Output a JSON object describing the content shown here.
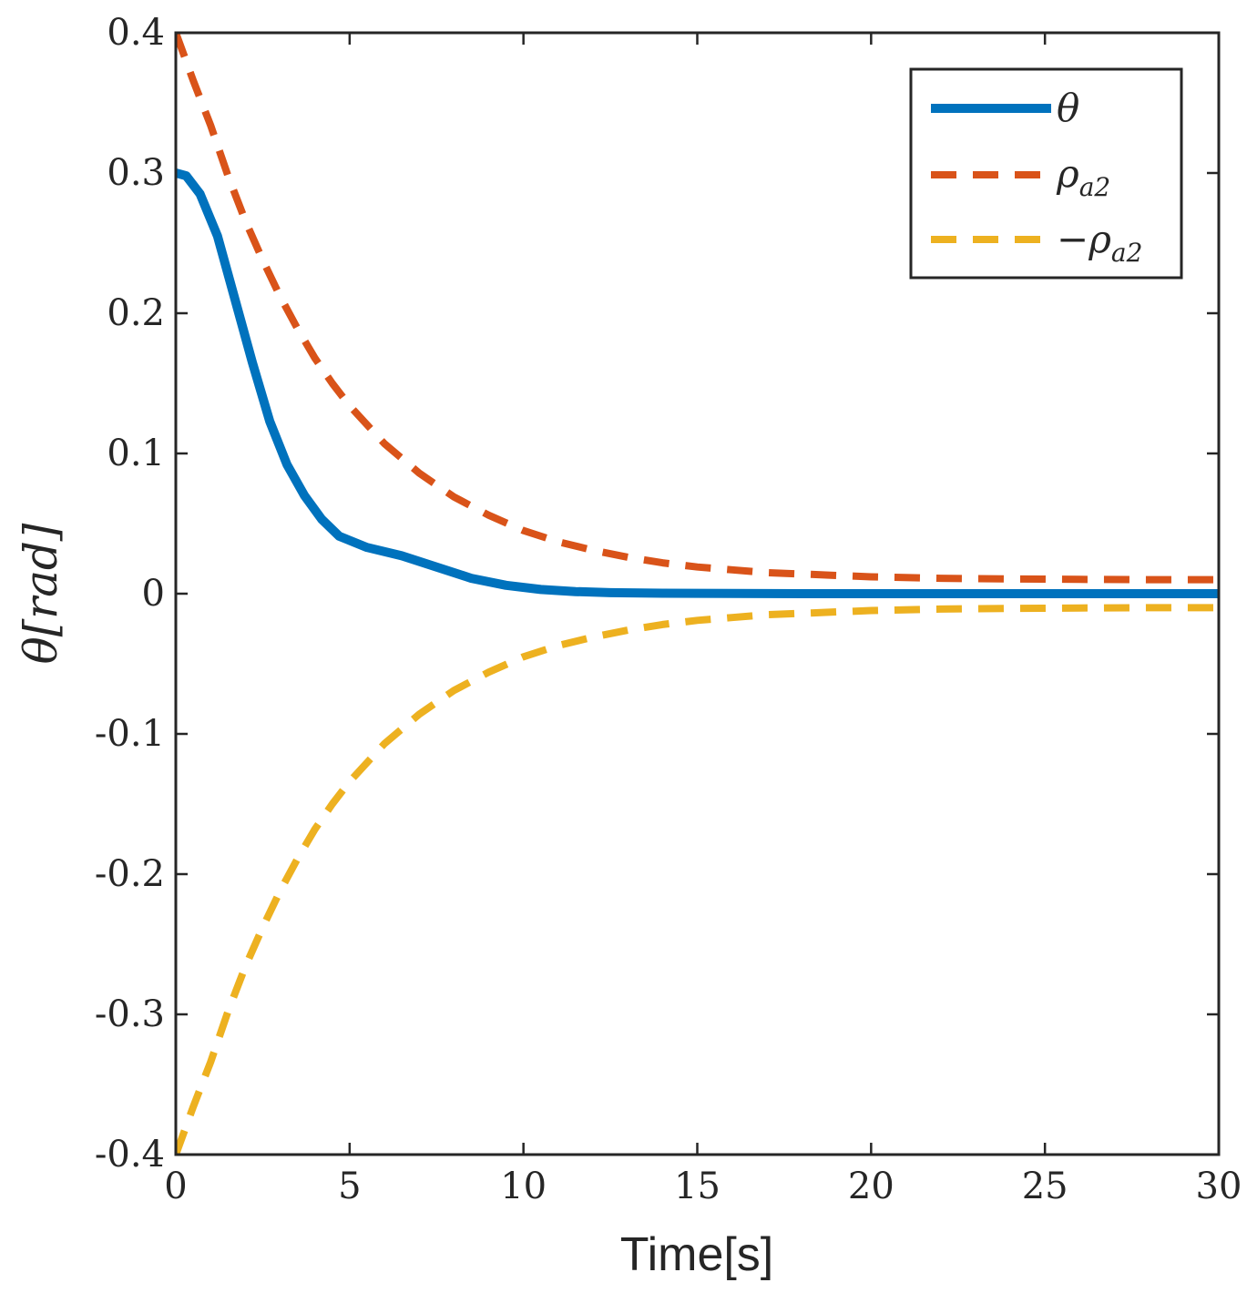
{
  "chart_data": {
    "type": "line",
    "title": "",
    "xlabel": "Time[s]",
    "ylabel": "θ[rad]",
    "xlim": [
      0,
      30
    ],
    "ylim": [
      -0.4,
      0.4
    ],
    "xticks": [
      0,
      5,
      10,
      15,
      20,
      25,
      30
    ],
    "xtick_labels": [
      "0",
      "5",
      "10",
      "15",
      "20",
      "25",
      "30"
    ],
    "yticks": [
      -0.4,
      -0.3,
      -0.2,
      -0.1,
      0,
      0.1,
      0.2,
      0.3,
      0.4
    ],
    "ytick_labels": [
      "-0.4",
      "-0.3",
      "-0.2",
      "-0.1",
      "0",
      "0.1",
      "0.2",
      "0.3",
      "0.4"
    ],
    "grid": false,
    "legend_position": "top-right",
    "series": [
      {
        "name": "θ",
        "legend_main": "θ",
        "legend_sub": "",
        "color": "#0072BD",
        "style": "solid",
        "x": [
          0,
          0.3,
          0.7,
          1.2,
          1.7,
          2.2,
          2.7,
          3.2,
          3.7,
          4.2,
          4.7,
          5.5,
          6.5,
          7.5,
          8.5,
          9.5,
          10.5,
          11.5,
          12.5,
          14,
          16,
          18,
          20,
          25,
          30
        ],
        "y": [
          0.3,
          0.298,
          0.285,
          0.255,
          0.21,
          0.165,
          0.123,
          0.092,
          0.07,
          0.053,
          0.041,
          0.033,
          0.027,
          0.019,
          0.011,
          0.006,
          0.003,
          0.0015,
          0.0007,
          0.0003,
          0.0001,
          0,
          0,
          0,
          0
        ]
      },
      {
        "name": "ρa2",
        "legend_main": "ρ",
        "legend_sub": "a2",
        "color": "#D95319",
        "style": "dashed",
        "x": [
          0,
          0.5,
          1,
          1.5,
          2,
          2.5,
          3,
          3.5,
          4,
          4.5,
          5,
          6,
          7,
          8,
          9,
          10,
          11,
          12,
          13,
          14,
          15,
          16,
          17,
          18,
          20,
          22,
          24,
          26,
          28,
          30
        ],
        "y": [
          0.4,
          0.366,
          0.334,
          0.298,
          0.266,
          0.238,
          0.212,
          0.189,
          0.168,
          0.15,
          0.134,
          0.107,
          0.086,
          0.069,
          0.056,
          0.045,
          0.037,
          0.031,
          0.026,
          0.022,
          0.019,
          0.017,
          0.015,
          0.014,
          0.012,
          0.011,
          0.0105,
          0.0102,
          0.01,
          0.01
        ]
      },
      {
        "name": "−ρa2",
        "legend_main": "−ρ",
        "legend_sub": "a2",
        "color": "#EDB120",
        "style": "dashed",
        "x": [
          0,
          0.5,
          1,
          1.5,
          2,
          2.5,
          3,
          3.5,
          4,
          4.5,
          5,
          6,
          7,
          8,
          9,
          10,
          11,
          12,
          13,
          14,
          15,
          16,
          17,
          18,
          20,
          22,
          24,
          26,
          28,
          30
        ],
        "y": [
          -0.4,
          -0.366,
          -0.334,
          -0.298,
          -0.266,
          -0.238,
          -0.212,
          -0.189,
          -0.168,
          -0.15,
          -0.134,
          -0.107,
          -0.086,
          -0.069,
          -0.056,
          -0.045,
          -0.037,
          -0.031,
          -0.026,
          -0.022,
          -0.019,
          -0.017,
          -0.015,
          -0.014,
          -0.012,
          -0.011,
          -0.0105,
          -0.0102,
          -0.01,
          -0.01
        ]
      }
    ]
  }
}
